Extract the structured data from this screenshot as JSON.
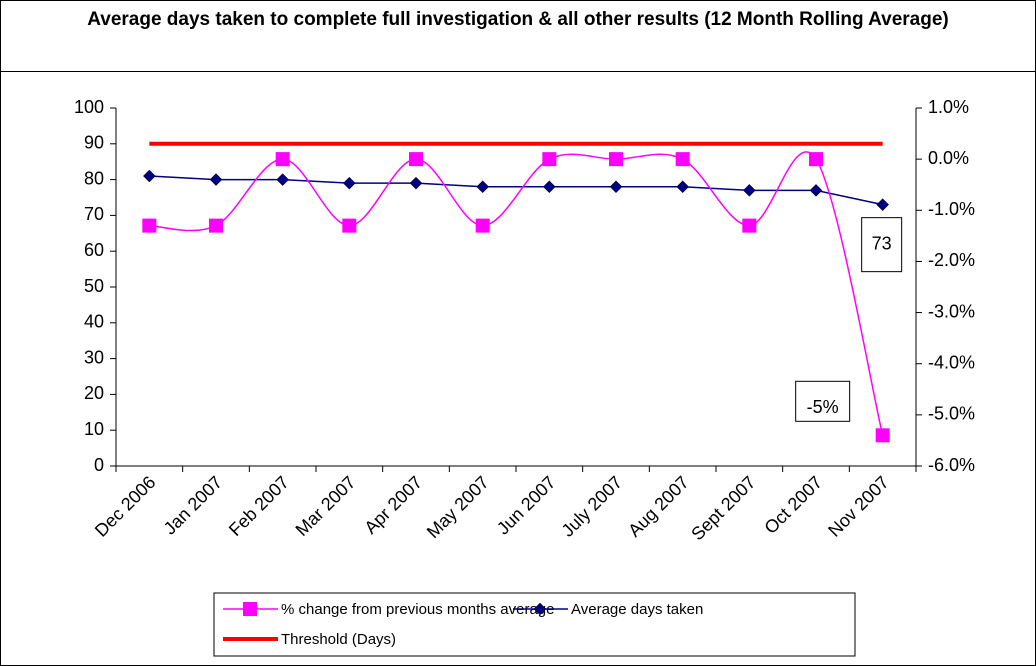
{
  "chart_data": {
    "type": "line",
    "title": "Average days taken to complete full investigation & all other results (12 Month Rolling Average)",
    "categories": [
      "Dec 2006",
      "Jan 2007",
      "Feb 2007",
      "Mar 2007",
      "Apr 2007",
      "May 2007",
      "Jun 2007",
      "July 2007",
      "Aug 2007",
      "Sept 2007",
      "Oct 2007",
      "Nov 2007"
    ],
    "series": [
      {
        "name": "% change from previous months average",
        "color": "#ff00ff",
        "marker": "square",
        "smooth": true,
        "axis": "y2",
        "values": [
          -1.3,
          -1.3,
          0,
          -1.3,
          0,
          -1.3,
          0,
          0,
          0,
          -1.3,
          0,
          -5.4
        ],
        "value_labels": [
          null,
          null,
          null,
          null,
          null,
          null,
          null,
          null,
          null,
          null,
          null,
          "-5%"
        ]
      },
      {
        "name": "Average days taken",
        "color": "#000080",
        "marker": "diamond",
        "smooth": false,
        "values": [
          81,
          80,
          80,
          79,
          79,
          78,
          78,
          78,
          78,
          77,
          77,
          73
        ],
        "value_labels": [
          null,
          null,
          null,
          null,
          null,
          null,
          null,
          null,
          null,
          null,
          null,
          "73"
        ]
      },
      {
        "name": "Threshold (Days)",
        "color": "#ff0000",
        "marker": "none",
        "smooth": false,
        "values": [
          90,
          90,
          90,
          90,
          90,
          90,
          90,
          90,
          90,
          90,
          90,
          90
        ]
      }
    ],
    "ylim": [
      0,
      100
    ],
    "yticks": [
      0,
      10,
      20,
      30,
      40,
      50,
      60,
      70,
      80,
      90,
      100
    ],
    "y2lim": [
      -6,
      1
    ],
    "y2ticks": [
      {
        "value": -6,
        "label": "-6.0%"
      },
      {
        "value": -5,
        "label": "-5.0%"
      },
      {
        "value": -4,
        "label": "-4.0%"
      },
      {
        "value": -3,
        "label": "-3.0%"
      },
      {
        "value": -2,
        "label": "-2.0%"
      },
      {
        "value": -1,
        "label": "-1.0%"
      },
      {
        "value": 0,
        "label": "0.0%"
      },
      {
        "value": 1,
        "label": "1.0%"
      }
    ],
    "legend": "bottom"
  }
}
